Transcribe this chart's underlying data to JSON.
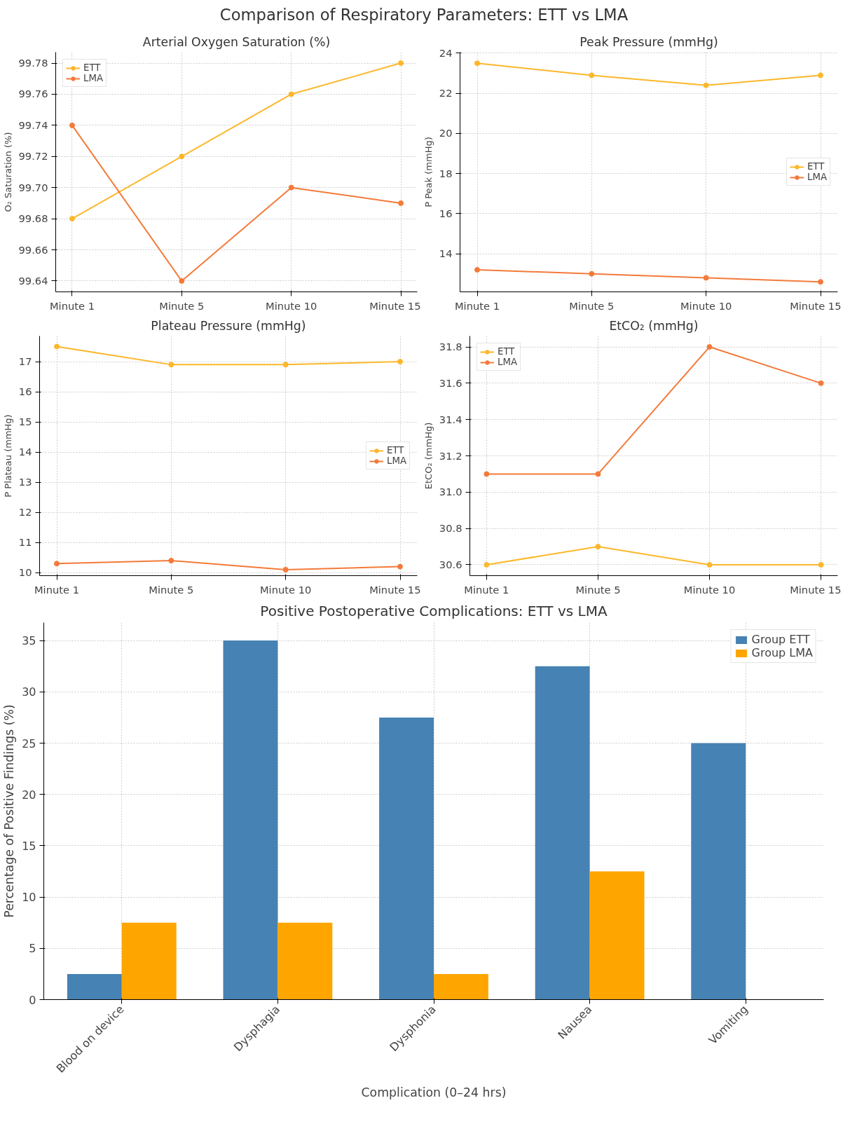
{
  "chart_data": [
    {
      "type": "line",
      "title": "Arterial Oxygen Saturation (%)",
      "ylabel": "O₂ Saturation (%)",
      "annotations": [
        "Comparison of Respiratory Parameters: ETT vs LMA"
      ],
      "categories": [
        "Minute 1",
        "Minute 5",
        "Minute 10",
        "Minute 15"
      ],
      "series": [
        {
          "name": "ETT",
          "color": "#fdb72b",
          "values": [
            99.68,
            99.72,
            99.76,
            99.78
          ]
        },
        {
          "name": "LMA",
          "color": "#f47a3a",
          "values": [
            99.74,
            99.64,
            99.7,
            99.69
          ]
        }
      ],
      "ylim": [
        99.633,
        99.787
      ],
      "yticks": [
        99.64,
        99.66,
        99.68,
        {
          "value": 99.7,
          "label": "99.70"
        },
        99.72,
        99.74,
        99.76,
        99.78
      ],
      "grid": true,
      "legend": "top left",
      "marker": "circle"
    },
    {
      "type": "line",
      "title": "Peak Pressure (mmHg)",
      "ylabel": "P Peak (mmHg)",
      "categories": [
        "Minute 1",
        "Minute 5",
        "Minute 10",
        "Minute 15"
      ],
      "series": [
        {
          "name": "ETT",
          "color": "#fdb72b",
          "values": [
            23.5,
            22.9,
            22.4,
            22.9
          ]
        },
        {
          "name": "LMA",
          "color": "#f47a3a",
          "values": [
            13.2,
            13.0,
            12.8,
            12.6
          ]
        }
      ],
      "ylim": [
        12.1,
        24.05
      ],
      "yticks": [
        14,
        16,
        18,
        20,
        22,
        24
      ],
      "grid": true,
      "legend": "right",
      "marker": "circle"
    },
    {
      "type": "line",
      "title": "Plateau Pressure (mmHg)",
      "ylabel": "P Plateau (mmHg)",
      "categories": [
        "Minute 1",
        "Minute 5",
        "Minute 10",
        "Minute 15"
      ],
      "series": [
        {
          "name": "ETT",
          "color": "#fdb72b",
          "values": [
            17.5,
            16.9,
            16.9,
            17.0
          ]
        },
        {
          "name": "LMA",
          "color": "#f47a3a",
          "values": [
            10.3,
            10.4,
            10.1,
            10.2
          ]
        }
      ],
      "ylim": [
        9.9,
        17.85
      ],
      "yticks": [
        10,
        11,
        12,
        13,
        14,
        15,
        16,
        17
      ],
      "grid": true,
      "legend": "right",
      "marker": "circle"
    },
    {
      "type": "line",
      "title": "EtCO₂ (mmHg)",
      "ylabel": "EtCO₂ (mmHg)",
      "categories": [
        "Minute 1",
        "Minute 5",
        "Minute 10",
        "Minute 15"
      ],
      "series": [
        {
          "name": "ETT",
          "color": "#fdb72b",
          "values": [
            30.6,
            30.7,
            30.6,
            30.6
          ]
        },
        {
          "name": "LMA",
          "color": "#f47a3a",
          "values": [
            31.1,
            31.1,
            31.8,
            31.6
          ]
        }
      ],
      "ylim": [
        30.54,
        31.86
      ],
      "yticks": [
        30.6,
        30.8,
        {
          "value": 31.0,
          "label": "31.0"
        },
        31.2,
        31.4,
        31.6,
        31.8
      ],
      "grid": true,
      "legend": "top left",
      "marker": "circle"
    },
    {
      "type": "bar",
      "title": "Positive Postoperative Complications: ETT vs LMA",
      "xlabel": "Complication (0–24 hrs)",
      "ylabel": "Percentage of Positive Findings (%)",
      "categories": [
        "Blood on device",
        "Dysphagia",
        "Dysphonia",
        "Nausea",
        "Vomiting"
      ],
      "series": [
        {
          "name": "Group ETT",
          "color": "#4682b4",
          "values": [
            2.5,
            35,
            27.5,
            32.5,
            25
          ]
        },
        {
          "name": "Group LMA",
          "color": "#ffa500",
          "values": [
            7.5,
            7.5,
            2.5,
            12.5,
            0
          ]
        }
      ],
      "ylim": [
        0,
        36.75
      ],
      "yticks": [
        0,
        5,
        10,
        15,
        20,
        25,
        30,
        35
      ],
      "grid": true,
      "legend": "top right"
    }
  ]
}
